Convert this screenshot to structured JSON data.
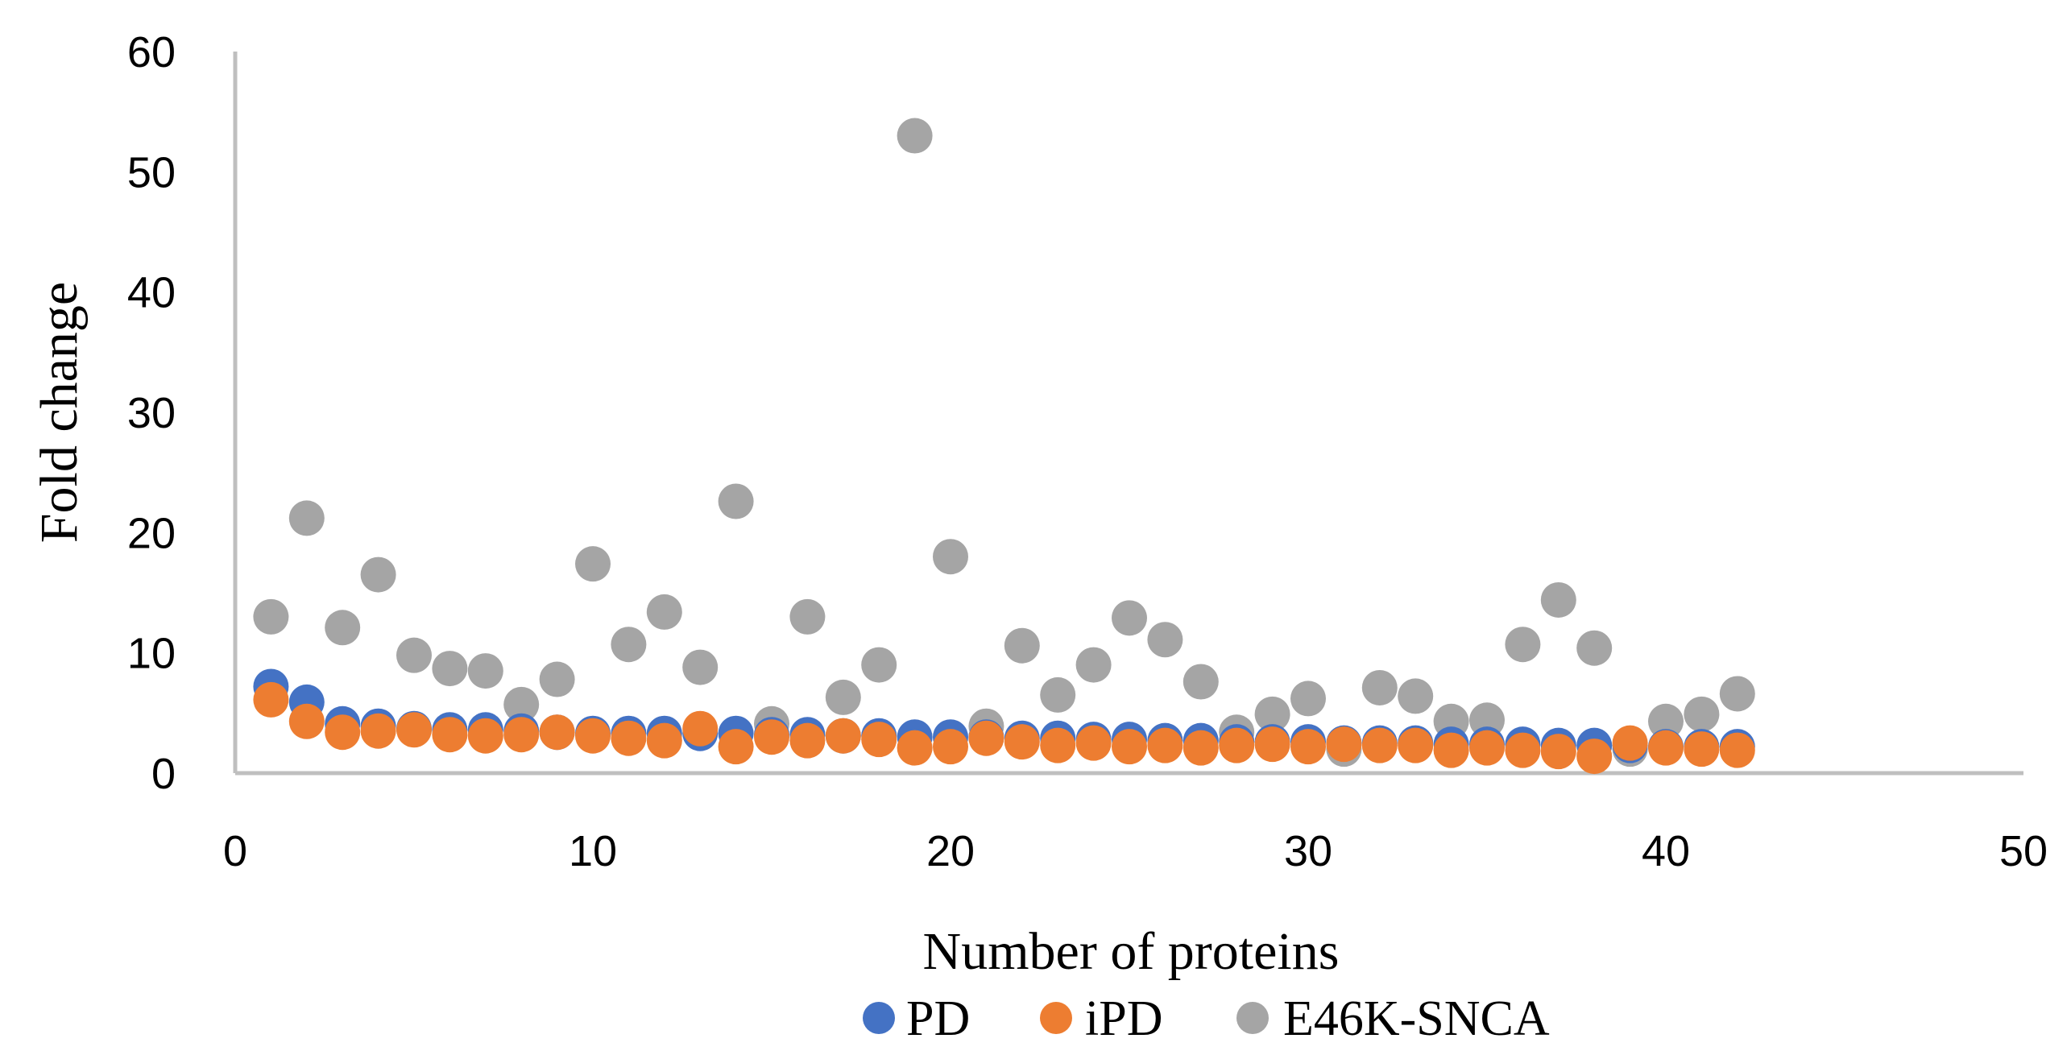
{
  "chart_data": {
    "type": "scatter",
    "title": "",
    "xlabel": "Number of proteins",
    "ylabel": "Fold change",
    "xlim": [
      0,
      50
    ],
    "ylim": [
      0,
      60
    ],
    "xticks": [
      0,
      10,
      20,
      30,
      40,
      50
    ],
    "yticks": [
      0,
      10,
      20,
      30,
      40,
      50,
      60
    ],
    "grid": false,
    "legend_position": "bottom",
    "x": [
      1,
      2,
      3,
      4,
      5,
      6,
      7,
      8,
      9,
      10,
      11,
      12,
      13,
      14,
      15,
      16,
      17,
      18,
      19,
      20,
      21,
      22,
      23,
      24,
      25,
      26,
      27,
      28,
      29,
      30,
      31,
      32,
      33,
      34,
      35,
      36,
      37,
      38,
      39,
      40,
      41,
      42
    ],
    "series": [
      {
        "name": "PD",
        "color": "#4472C4",
        "values": [
          7.2,
          5.9,
          4.1,
          3.9,
          3.7,
          3.6,
          3.6,
          3.5,
          3.4,
          3.3,
          3.3,
          3.3,
          3.3,
          3.3,
          3.2,
          3.2,
          3.1,
          3.1,
          3.0,
          3.0,
          3.0,
          2.9,
          2.9,
          2.8,
          2.8,
          2.7,
          2.7,
          2.6,
          2.6,
          2.6,
          2.5,
          2.5,
          2.5,
          2.4,
          2.4,
          2.4,
          2.3,
          2.3,
          2.3,
          2.2,
          2.2,
          2.2
        ]
      },
      {
        "name": "iPD",
        "color": "#ED7D31",
        "values": [
          6.1,
          4.3,
          3.4,
          3.5,
          3.6,
          3.2,
          3.1,
          3.2,
          3.4,
          3.1,
          2.9,
          2.7,
          3.7,
          2.2,
          3.0,
          2.7,
          3.1,
          2.8,
          2.1,
          2.2,
          2.9,
          2.6,
          2.3,
          2.5,
          2.2,
          2.3,
          2.1,
          2.3,
          2.4,
          2.2,
          2.4,
          2.3,
          2.3,
          1.9,
          2.1,
          1.9,
          1.8,
          1.4,
          2.5,
          2.1,
          2.0,
          1.9
        ]
      },
      {
        "name": "E46K-SNCA",
        "color": "#A5A5A5",
        "values": [
          13.0,
          21.2,
          12.1,
          16.5,
          9.8,
          8.7,
          8.5,
          5.7,
          7.8,
          17.4,
          10.7,
          13.4,
          8.8,
          22.6,
          4.1,
          13.0,
          6.3,
          9.0,
          53.0,
          18.0,
          3.9,
          10.6,
          6.5,
          9.0,
          12.9,
          11.1,
          7.6,
          3.4,
          4.9,
          6.2,
          2.0,
          7.1,
          6.4,
          4.3,
          4.4,
          10.7,
          14.4,
          10.4,
          2.0,
          4.3,
          4.9,
          6.6
        ]
      }
    ]
  }
}
